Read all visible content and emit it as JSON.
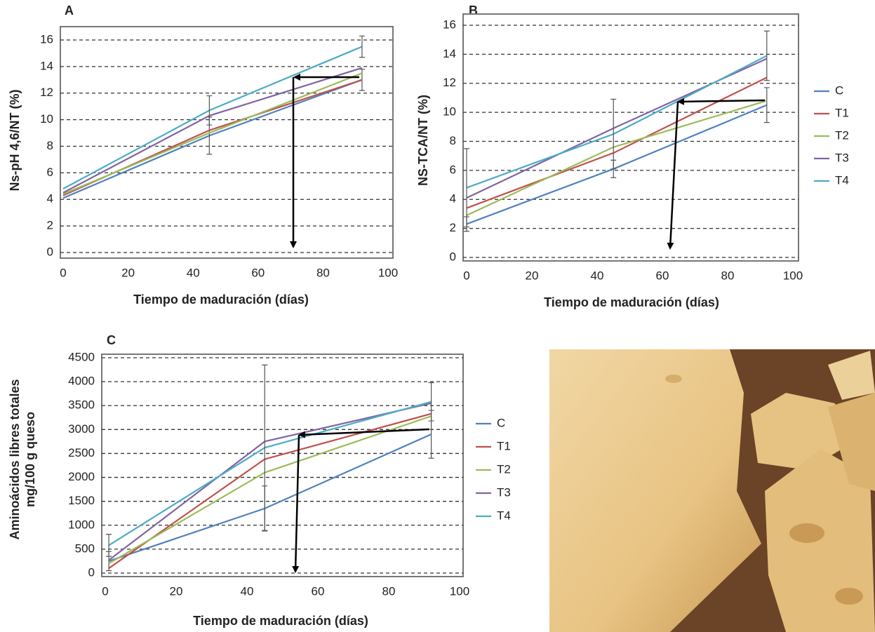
{
  "chart_data": [
    {
      "type": "line",
      "title": "A",
      "xlabel": "Tiempo de maduración (días)",
      "ylabel": [
        "Ns-pH 4,6/NT (%)"
      ],
      "x": [
        0,
        45,
        92
      ],
      "xlim": [
        0,
        100
      ],
      "xticks": [
        0,
        20,
        40,
        60,
        80,
        100
      ],
      "ylim": [
        0,
        16
      ],
      "yticks": [
        0,
        2,
        4,
        6,
        8,
        10,
        12,
        14,
        16
      ],
      "grid": true,
      "legend": "none",
      "series": [
        {
          "color": "#4f81bd",
          "values": [
            4.1,
            8.8,
            13.0
          ],
          "errors": [
            null,
            1.4,
            0.8
          ]
        },
        {
          "color": "#c0504d",
          "values": [
            4.3,
            9.2,
            13.0
          ]
        },
        {
          "color": "#9bbb59",
          "values": [
            4.4,
            9.0,
            13.5
          ]
        },
        {
          "color": "#8064a2",
          "values": [
            4.5,
            10.3,
            13.9
          ]
        },
        {
          "color": "#4bacc6",
          "values": [
            4.8,
            10.7,
            15.5
          ],
          "errors": [
            null,
            1.1,
            0.8
          ]
        }
      ]
    },
    {
      "type": "line",
      "title": "B",
      "xlabel": "Tiempo de maduración (días)",
      "ylabel": [
        "NS-TCA/NT (%)"
      ],
      "x": [
        0,
        45,
        92
      ],
      "xlim": [
        0,
        100
      ],
      "xticks": [
        0,
        20,
        40,
        60,
        80,
        100
      ],
      "ylim": [
        0,
        16
      ],
      "yticks": [
        0,
        2,
        4,
        6,
        8,
        10,
        12,
        14,
        16
      ],
      "grid": true,
      "legend": "right",
      "series": [
        {
          "name": "C",
          "color": "#4f81bd",
          "values": [
            2.3,
            6.1,
            10.5
          ],
          "errors": [
            0.5,
            0.6,
            1.2
          ]
        },
        {
          "name": "T1",
          "color": "#c0504d",
          "values": [
            3.4,
            7.2,
            12.4
          ]
        },
        {
          "name": "T2",
          "color": "#9bbb59",
          "values": [
            2.9,
            7.6,
            10.8
          ]
        },
        {
          "name": "T3",
          "color": "#8064a2",
          "values": [
            4.1,
            8.9,
            13.7
          ]
        },
        {
          "name": "T4",
          "color": "#4bacc6",
          "values": [
            4.8,
            8.5,
            13.9
          ],
          "errors": [
            2.7,
            2.4,
            1.7
          ]
        }
      ]
    },
    {
      "type": "line",
      "title": "C",
      "xlabel": "Tiempo de maduración (días)",
      "ylabel": [
        "Aminoácidos libres totales",
        "mg/100 g queso"
      ],
      "x": [
        1,
        45,
        92
      ],
      "xlim": [
        0,
        100
      ],
      "xticks": [
        0,
        20,
        40,
        60,
        80,
        100
      ],
      "ylim": [
        0,
        4500
      ],
      "yticks": [
        0,
        500,
        1000,
        1500,
        2000,
        2500,
        3000,
        3500,
        4000,
        4500
      ],
      "grid": true,
      "legend": "right",
      "series": [
        {
          "name": "C",
          "color": "#4f81bd",
          "values": [
            250,
            1350,
            2900
          ],
          "errors": [
            200,
            470,
            500
          ]
        },
        {
          "name": "T1",
          "color": "#c0504d",
          "values": [
            100,
            2380,
            3330
          ]
        },
        {
          "name": "T2",
          "color": "#9bbb59",
          "values": [
            200,
            2100,
            3280
          ]
        },
        {
          "name": "T3",
          "color": "#8064a2",
          "values": [
            270,
            2750,
            3550
          ]
        },
        {
          "name": "T4",
          "color": "#4bacc6",
          "values": [
            580,
            2620,
            3580
          ],
          "errors": [
            230,
            1730,
            400
          ]
        }
      ]
    }
  ]
}
